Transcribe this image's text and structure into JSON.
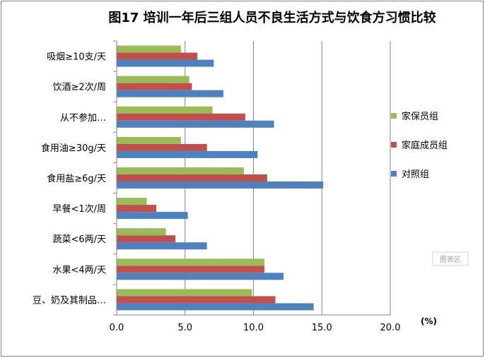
{
  "chart_data": {
    "type": "bar",
    "orientation": "horizontal",
    "title": "图17 培训一年后三组人员不良生活方式与饮食方习惯比较",
    "categories": [
      "吸烟≥10支/天",
      "饮酒≥2次/周",
      "从不参加…",
      "食用油≥30g/天",
      "食用盐≥6g/天",
      "早餐<1次/周",
      "蔬菜<6两/天",
      "水果<4两/天",
      "豆、奶及其制品…"
    ],
    "series": [
      {
        "name": "家保员组",
        "color": "#9BBB59",
        "values": [
          4.7,
          5.3,
          7.0,
          4.7,
          9.3,
          2.2,
          3.6,
          10.8,
          9.9
        ]
      },
      {
        "name": "家庭成员组",
        "color": "#C0504D",
        "values": [
          5.9,
          5.5,
          9.4,
          6.6,
          11.0,
          2.9,
          4.3,
          10.8,
          11.6
        ]
      },
      {
        "name": "对照组",
        "color": "#4F81BD",
        "values": [
          7.1,
          7.8,
          11.5,
          10.3,
          15.1,
          5.2,
          6.6,
          12.2,
          14.4
        ]
      }
    ],
    "xlim": [
      0,
      20
    ],
    "xticks": [
      "0.0",
      "5.0",
      "10.0",
      "15.0",
      "20.0"
    ],
    "xlabel": "(%)",
    "grid": true,
    "legend_position": "right"
  },
  "watermark": "图表区"
}
